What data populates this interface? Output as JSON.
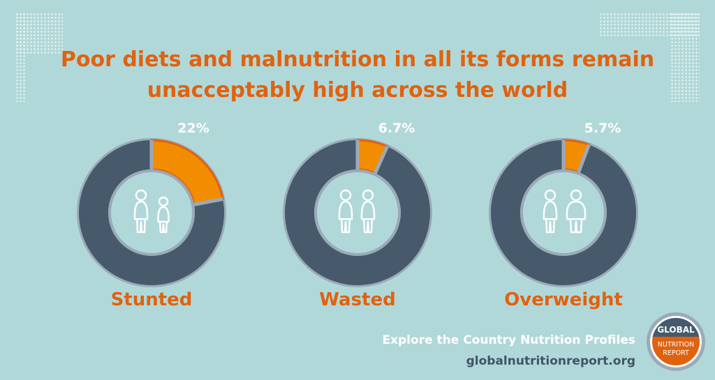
{
  "title_lines": [
    "Poor diets and malnutrition in all its forms remain",
    "unacceptably high across the world"
  ],
  "chart_data": {
    "type": "pie",
    "charts": [
      {
        "name": "Stunted",
        "value": 22,
        "value_label": "22%",
        "icon": "two-children-icon"
      },
      {
        "name": "Wasted",
        "value": 6.7,
        "value_label": "6.7%",
        "icon": "two-thin-children-icon"
      },
      {
        "name": "Overweight",
        "value": 5.7,
        "value_label": "5.7%",
        "icon": "child-and-overweight-child-icon"
      }
    ],
    "colors": {
      "highlight": "#f28c00",
      "highlight_edge": "#e0620f",
      "remainder": "#465a6b",
      "ring_edge": "#9aaab9"
    }
  },
  "footer": {
    "cta": "Explore the Country Nutrition Profiles",
    "url": "globalnutritionreport.org"
  },
  "logo": {
    "line1": "GLOBAL",
    "line2": "NUTRITION",
    "line3": "REPORT"
  },
  "colors": {
    "background": "#b1d8d8",
    "accent": "#e0620f",
    "dark": "#3f5466"
  }
}
